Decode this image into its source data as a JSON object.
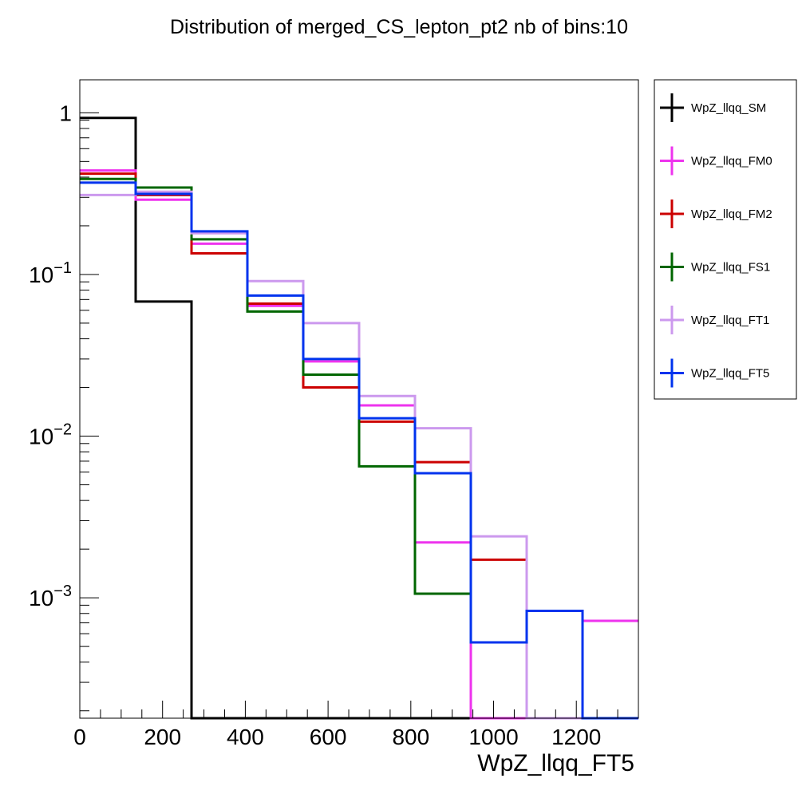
{
  "chart_data": {
    "type": "step",
    "title": "Distribution of merged_CS_lepton_pt2 nb of bins:10",
    "xlabel": "WpZ_llqq_FT5",
    "ylabel": "",
    "x_scale": "linear",
    "y_scale": "log",
    "xlim": [
      0,
      1350
    ],
    "ylim": [
      0.00018,
      1.6
    ],
    "bin_edges": [
      0,
      135,
      270,
      405,
      540,
      675,
      810,
      945,
      1080,
      1215,
      1350
    ],
    "x_ticks": [
      0,
      200,
      400,
      600,
      800,
      1000,
      1200
    ],
    "x_tick_labels": [
      "0",
      "200",
      "400",
      "600",
      "800",
      "1000",
      "1200"
    ],
    "y_ticks": [
      0.001,
      0.01,
      0.1,
      1
    ],
    "y_tick_labels": [
      {
        "base": "10",
        "exp": "−3"
      },
      {
        "base": "10",
        "exp": "−2"
      },
      {
        "base": "10",
        "exp": "−1"
      },
      {
        "base": "1",
        "exp": ""
      }
    ],
    "grid": false,
    "legend_position": "right-outside-top",
    "series": [
      {
        "name": "WpZ_llqq_SM",
        "color": "#000000",
        "values": [
          0.93,
          0.068,
          0,
          0,
          0,
          0,
          0,
          0,
          0,
          0
        ]
      },
      {
        "name": "WpZ_llqq_FM0",
        "color": "#ee33ee",
        "values": [
          0.44,
          0.29,
          0.155,
          0.064,
          0.029,
          0.0155,
          0.0022,
          0.0,
          0.0,
          0.00072
        ]
      },
      {
        "name": "WpZ_llqq_FM2",
        "color": "#cc0000",
        "values": [
          0.42,
          0.31,
          0.135,
          0.066,
          0.02,
          0.0123,
          0.0069,
          0.00172,
          0.0,
          0.0
        ]
      },
      {
        "name": "WpZ_llqq_FS1",
        "color": "#006600",
        "values": [
          0.39,
          0.345,
          0.165,
          0.059,
          0.024,
          0.0065,
          0.00106,
          0.00053,
          0.0,
          0.0
        ]
      },
      {
        "name": "WpZ_llqq_FT1",
        "color": "#cc99ee",
        "values": [
          0.31,
          0.325,
          0.18,
          0.091,
          0.05,
          0.0177,
          0.0112,
          0.0024,
          0.0,
          0.0
        ]
      },
      {
        "name": "WpZ_llqq_FT5",
        "color": "#0033ee",
        "values": [
          0.37,
          0.315,
          0.185,
          0.074,
          0.03,
          0.0129,
          0.0059,
          0.00053,
          0.00083,
          0.0
        ]
      }
    ]
  }
}
